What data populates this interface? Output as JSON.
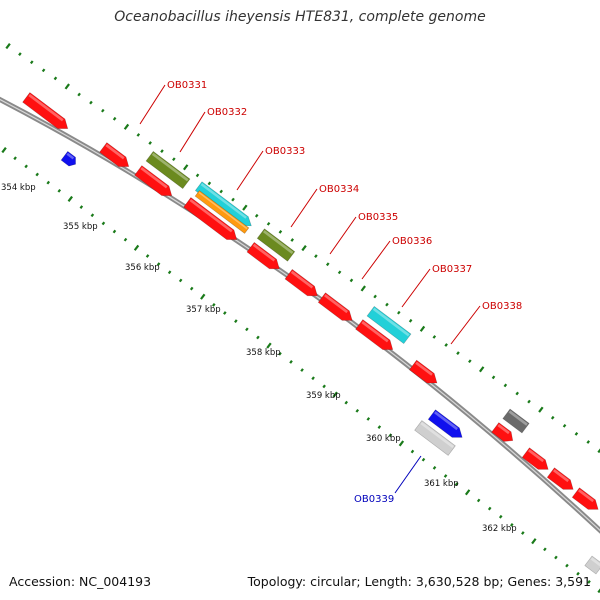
{
  "title": "Oceanobacillus iheyensis HTE831, complete genome",
  "footer": {
    "accession": "Accession: NC_004193",
    "topology": "Topology: circular; Length: 3,630,528 bp; Genes: 3,591"
  },
  "colors": {
    "backbone": "#8a8a8a",
    "tick": "#1a7a1a",
    "label_red": "#cc0000",
    "label_blue": "#0000bb",
    "red": "#ff1010",
    "blue": "#1010ee",
    "olive": "#6b8a1f",
    "cyan": "#22d0d8",
    "orange": "#ff9a10",
    "gray": "#6a6a6a",
    "lightgray": "#cfcfcf"
  },
  "kbp_labels": [
    "354 kbp",
    "355 kbp",
    "356 kbp",
    "357 kbp",
    "358 kbp",
    "359 kbp",
    "360 kbp",
    "361 kbp",
    "362 kbp"
  ],
  "gene_labels": [
    {
      "text": "OB0331",
      "color": "red"
    },
    {
      "text": "OB0332",
      "color": "red"
    },
    {
      "text": "OB0333",
      "color": "red"
    },
    {
      "text": "OB0334",
      "color": "red"
    },
    {
      "text": "OB0335",
      "color": "red"
    },
    {
      "text": "OB0336",
      "color": "red"
    },
    {
      "text": "OB0337",
      "color": "red"
    },
    {
      "text": "OB0338",
      "color": "red"
    },
    {
      "text": "OB0339",
      "color": "blue"
    }
  ],
  "features": [
    {
      "color": "red"
    },
    {
      "color": "blue"
    },
    {
      "color": "red"
    },
    {
      "color": "red"
    },
    {
      "color": "olive"
    },
    {
      "color": "cyan"
    },
    {
      "color": "orange"
    },
    {
      "color": "red"
    },
    {
      "color": "olive"
    },
    {
      "color": "red"
    },
    {
      "color": "red"
    },
    {
      "color": "red"
    },
    {
      "color": "red"
    },
    {
      "color": "cyan"
    },
    {
      "color": "red"
    },
    {
      "color": "blue"
    },
    {
      "color": "lightgray"
    },
    {
      "color": "gray"
    },
    {
      "color": "red"
    },
    {
      "color": "red"
    },
    {
      "color": "red"
    },
    {
      "color": "red"
    },
    {
      "color": "lightgray"
    }
  ]
}
